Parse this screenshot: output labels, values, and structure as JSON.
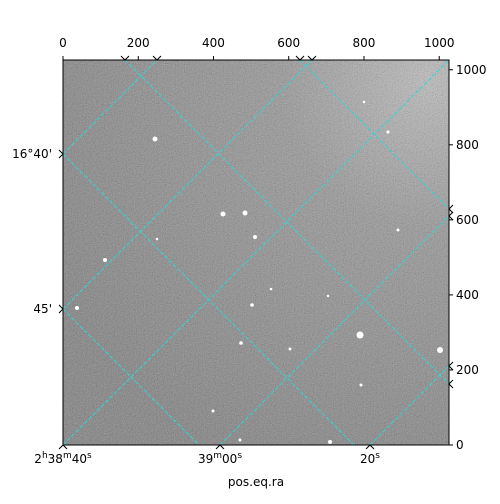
{
  "chart_data": {
    "type": "image",
    "xlabel": "pos.eq.ra",
    "xlim": [
      0,
      1026
    ],
    "ylim": [
      0,
      1026
    ],
    "xticks": [
      0,
      200,
      400,
      600,
      800,
      1000
    ],
    "yticks": [
      0,
      200,
      400,
      600,
      800,
      1000
    ],
    "ra_labels": [
      "2h38m40s",
      "39m00s",
      "20s"
    ],
    "dec_labels": [
      "16°40'",
      "45'"
    ]
  }
}
